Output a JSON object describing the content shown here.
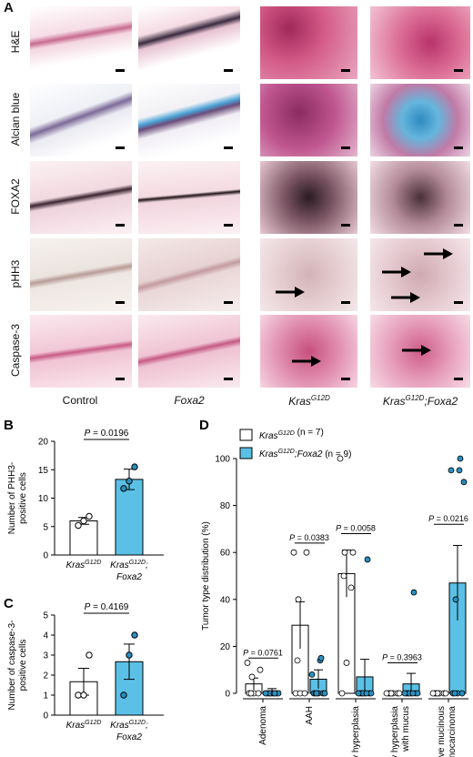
{
  "panel_a": {
    "label": "A",
    "rows": [
      "H&E",
      "Alcian blue",
      "FOXA2",
      "pHH3",
      "Caspase-3"
    ],
    "columns": [
      {
        "base": "Control",
        "sup": "",
        "suffix": "",
        "italic": false
      },
      {
        "base": "Foxa2",
        "sup": "",
        "suffix": "",
        "italic": true
      },
      {
        "base": "Kras",
        "sup": "G12D",
        "suffix": "",
        "italic": true
      },
      {
        "base": "Kras",
        "sup": "G12D",
        "suffix": ";Foxa2",
        "italic": true
      }
    ],
    "arrow_counts": [
      [
        0,
        0,
        0,
        0
      ],
      [
        0,
        0,
        0,
        0
      ],
      [
        0,
        0,
        0,
        0
      ],
      [
        0,
        0,
        1,
        3
      ],
      [
        0,
        0,
        1,
        1
      ]
    ]
  },
  "chart_data": [
    {
      "panel": "B",
      "type": "bar",
      "categories": [
        {
          "line1_base": "Kras",
          "line1_sup": "G12D",
          "line2": ""
        },
        {
          "line1_base": "Kras",
          "line1_sup": "G12D",
          "line1_tail": ";",
          "line2": "Foxa2"
        }
      ],
      "values": [
        6.0,
        13.3
      ],
      "errors": [
        0.6,
        1.8
      ],
      "points": [
        [
          5.2,
          6.0,
          6.8
        ],
        [
          11.7,
          13.0,
          15.5
        ]
      ],
      "ylabel_lines": [
        "Number of PHH3-",
        "positive cells"
      ],
      "ylim": [
        0,
        20
      ],
      "yticks": [
        0,
        5,
        10,
        15,
        20
      ],
      "annotation": {
        "p_label": "P",
        "p_value": "= 0.0196"
      },
      "bar_colors": [
        "#ffffff",
        "#5bc0e6"
      ]
    },
    {
      "panel": "C",
      "type": "bar",
      "categories": [
        {
          "line1_base": "Kras",
          "line1_sup": "G12D",
          "line2": ""
        },
        {
          "line1_base": "Kras",
          "line1_sup": "G12D",
          "line1_tail": ";",
          "line2": "Foxa2"
        }
      ],
      "values": [
        1.67,
        2.67
      ],
      "errors": [
        0.67,
        0.88
      ],
      "points": [
        [
          1.0,
          1.0,
          3.0
        ],
        [
          1.0,
          3.0,
          4.0
        ]
      ],
      "ylabel_lines": [
        "Number of caspase-3-",
        "positive cells"
      ],
      "ylim": [
        0,
        5
      ],
      "yticks": [
        0,
        1,
        2,
        3,
        4,
        5
      ],
      "annotation": {
        "p_label": "P",
        "p_value": "= 0.4169"
      },
      "bar_colors": [
        "#ffffff",
        "#5bc0e6"
      ]
    },
    {
      "panel": "D",
      "type": "bar",
      "categories": [
        "Adenoma",
        "AAH",
        "Papillary hyperplasia",
        "Papillary hyperplasia with mucus",
        "Invasive mucinous adenocarcinoma"
      ],
      "category_lines": [
        [
          "Adenoma"
        ],
        [
          "AAH"
        ],
        [
          "Papillary hyperplasia"
        ],
        [
          "Papillary hyperplasia",
          "with mucus"
        ],
        [
          "Invasive mucinous",
          "adenocarcinoma"
        ]
      ],
      "series": [
        {
          "name_base": "Kras",
          "name_sup": "G12D",
          "name_tail": "",
          "n_text": "(n = 7)",
          "color": "#ffffff",
          "values": [
            4,
            29,
            51,
            0,
            0
          ],
          "errors": [
            2.5,
            10,
            10,
            0,
            0
          ],
          "points": [
            [
              0,
              0,
              0,
              0,
              7,
              10,
              13
            ],
            [
              0,
              0,
              0,
              14,
              40,
              60,
              60
            ],
            [
              0,
              13,
              45,
              50,
              60,
              60,
              100
            ],
            [
              0,
              0,
              0,
              0,
              0,
              0,
              0
            ],
            [
              0,
              0,
              0,
              0,
              0,
              0,
              0
            ]
          ]
        },
        {
          "name_base": "Kras",
          "name_sup": "G12D",
          "name_tail": ";Foxa2",
          "n_text": "(n = 9)",
          "color": "#5bc0e6",
          "values": [
            1,
            6,
            7,
            4,
            47
          ],
          "errors": [
            1,
            4,
            7.5,
            4.5,
            16
          ],
          "points": [
            [
              0,
              0,
              0,
              0,
              0,
              0,
              0,
              0,
              0
            ],
            [
              0,
              0,
              0,
              0,
              0,
              0,
              8,
              14,
              15
            ],
            [
              0,
              0,
              0,
              0,
              0,
              0,
              0,
              0,
              57
            ],
            [
              0,
              0,
              0,
              0,
              0,
              0,
              0,
              0,
              43
            ],
            [
              0,
              0,
              0,
              0,
              40,
              90,
              95,
              95,
              100
            ]
          ]
        }
      ],
      "ylabel": "Tumor type distribution (%)",
      "ylim": [
        0,
        100
      ],
      "yticks": [
        0,
        20,
        40,
        60,
        80,
        100
      ],
      "p_values": [
        "= 0.0761",
        "= 0.0383",
        "= 0.0058",
        "= 0.3963",
        "= 0.0216"
      ],
      "p_label": "P"
    }
  ]
}
